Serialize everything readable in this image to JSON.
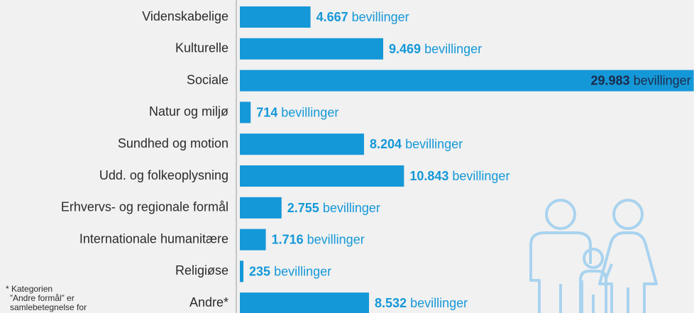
{
  "chart_data": {
    "type": "bar",
    "orientation": "horizontal",
    "categories": [
      "Videnskabelige",
      "Kulturelle",
      "Sociale",
      "Natur og miljø",
      "Sundhed og motion",
      "Udd. og folkeoplysning",
      "Erhvervs- og regionale formål",
      "Internationale humanitære",
      "Religiøse",
      "Andre*"
    ],
    "values": [
      4667,
      9469,
      29983,
      714,
      8204,
      10843,
      2755,
      1716,
      235,
      8532
    ],
    "value_labels": [
      "4.667",
      "9.469",
      "29.983",
      "714",
      "8.204",
      "10.843",
      "2.755",
      "1.716",
      "235",
      "8.532"
    ],
    "unit_label": "bevillinger",
    "color": "#1598d8",
    "xlim": [
      0,
      30000
    ],
    "footnote": [
      "* Kategorien",
      "”Andre formål” er",
      "samlebetegnelse for"
    ]
  }
}
